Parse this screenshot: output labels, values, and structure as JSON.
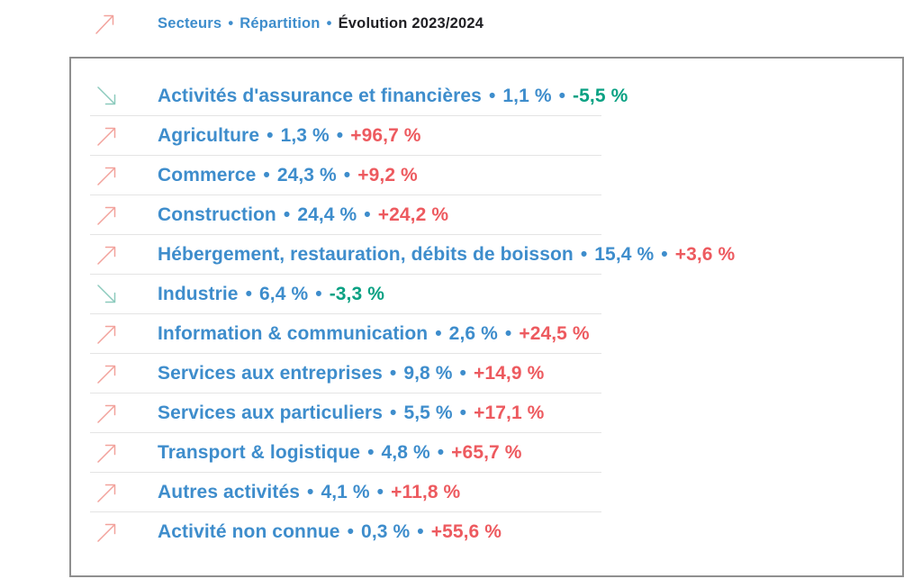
{
  "colors": {
    "blue": "#3e8dcc",
    "dark": "#1f1f23",
    "red": "#ed5a5f",
    "green": "#0aa183",
    "coral_arrow": "#f2a29c",
    "teal_arrow": "#8ccabd",
    "border": "#8f8f8f",
    "divider": "#e4e4e4",
    "bg": "#ffffff"
  },
  "separator": "•",
  "header": {
    "trend": "up",
    "items": [
      {
        "label": "Secteurs",
        "style": "blue"
      },
      {
        "label": "Répartition",
        "style": "blue"
      },
      {
        "label": "Évolution 2023/2024",
        "style": "dark"
      }
    ]
  },
  "panel": {
    "rows": [
      {
        "trend": "down",
        "name": "Activités d'assurance et financières",
        "share": "1,1 %",
        "change": "-5,5 %"
      },
      {
        "trend": "up",
        "name": "Agriculture",
        "share": "1,3 %",
        "change": "+96,7 %"
      },
      {
        "trend": "up",
        "name": "Commerce",
        "share": "24,3 %",
        "change": "+9,2 %"
      },
      {
        "trend": "up",
        "name": "Construction",
        "share": "24,4 %",
        "change": "+24,2 %"
      },
      {
        "trend": "up",
        "name": "Hébergement, restauration, débits de boisson",
        "share": "15,4 %",
        "change": "+3,6 %"
      },
      {
        "trend": "down",
        "name": "Industrie",
        "share": "6,4 %",
        "change": "-3,3 %"
      },
      {
        "trend": "up",
        "name": "Information & communication",
        "share": "2,6 %",
        "change": "+24,5 %"
      },
      {
        "trend": "up",
        "name": "Services aux entreprises",
        "share": "9,8 %",
        "change": "+14,9 %"
      },
      {
        "trend": "up",
        "name": "Services aux particuliers",
        "share": "5,5 %",
        "change": "+17,1 %"
      },
      {
        "trend": "up",
        "name": "Transport & logistique",
        "share": "4,8 %",
        "change": "+65,7 %"
      },
      {
        "trend": "up",
        "name": "Autres activités",
        "share": "4,1 %",
        "change": "+11,8 %"
      },
      {
        "trend": "up",
        "name": "Activité non connue",
        "share": "0,3 %",
        "change": "+55,6 %"
      }
    ]
  },
  "chart_data": {
    "type": "table",
    "title": "Secteurs • Répartition • Évolution 2023/2024",
    "columns": [
      "Secteur",
      "Répartition (%)",
      "Évolution 2023/2024 (%)"
    ],
    "rows": [
      [
        "Activités d'assurance et financières",
        1.1,
        -5.5
      ],
      [
        "Agriculture",
        1.3,
        96.7
      ],
      [
        "Commerce",
        24.3,
        9.2
      ],
      [
        "Construction",
        24.4,
        24.2
      ],
      [
        "Hébergement, restauration, débits de boisson",
        15.4,
        3.6
      ],
      [
        "Industrie",
        6.4,
        -3.3
      ],
      [
        "Information & communication",
        2.6,
        24.5
      ],
      [
        "Services aux entreprises",
        9.8,
        14.9
      ],
      [
        "Services aux particuliers",
        5.5,
        17.1
      ],
      [
        "Transport & logistique",
        4.8,
        65.7
      ],
      [
        "Autres activités",
        4.1,
        11.8
      ],
      [
        "Activité non connue",
        0.3,
        55.6
      ]
    ]
  }
}
